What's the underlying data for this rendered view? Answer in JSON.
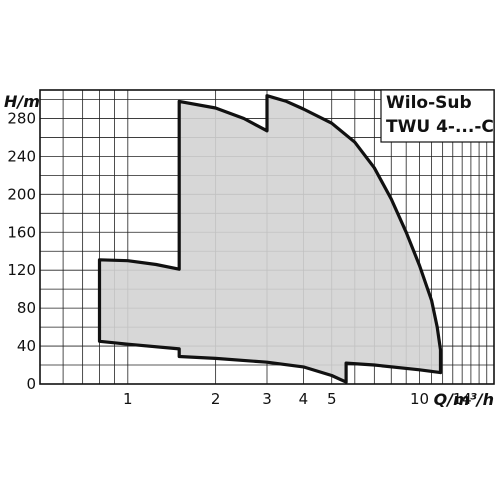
{
  "chart_data": {
    "type": "area",
    "title_lines": [
      "Wilo-Sub",
      "TWU 4-...-C"
    ],
    "xlabel": "Q/m³/h",
    "ylabel": "H/m",
    "x_scale": "log",
    "xlim": [
      0.5,
      18
    ],
    "ylim": [
      0,
      310
    ],
    "x_ticks": [
      {
        "value": 1,
        "label": "1"
      },
      {
        "value": 2,
        "label": "2"
      },
      {
        "value": 3,
        "label": "3"
      },
      {
        "value": 4,
        "label": "4"
      },
      {
        "value": 5,
        "label": "5"
      },
      {
        "value": 10,
        "label": "10"
      },
      {
        "value": 14,
        "label": "14"
      }
    ],
    "y_ticks": [
      {
        "value": 0,
        "label": "0"
      },
      {
        "value": 40,
        "label": "40"
      },
      {
        "value": 80,
        "label": "80"
      },
      {
        "value": 120,
        "label": "120"
      },
      {
        "value": 160,
        "label": "160"
      },
      {
        "value": 200,
        "label": "200"
      },
      {
        "value": 240,
        "label": "240"
      },
      {
        "value": 280,
        "label": "280"
      }
    ],
    "grid": true,
    "fill_color": "#d3d3d3",
    "outline_color": "#111111",
    "envelope": [
      {
        "q": 0.8,
        "h": 131
      },
      {
        "q": 1.0,
        "h": 130
      },
      {
        "q": 1.25,
        "h": 126
      },
      {
        "q": 1.5,
        "h": 121
      },
      {
        "q": 1.5,
        "h": 298
      },
      {
        "q": 2.0,
        "h": 291
      },
      {
        "q": 2.5,
        "h": 280
      },
      {
        "q": 3.0,
        "h": 267
      },
      {
        "q": 3.0,
        "h": 304
      },
      {
        "q": 3.5,
        "h": 298
      },
      {
        "q": 4.0,
        "h": 290
      },
      {
        "q": 5.0,
        "h": 275
      },
      {
        "q": 6.0,
        "h": 255
      },
      {
        "q": 7.0,
        "h": 228
      },
      {
        "q": 8.0,
        "h": 195
      },
      {
        "q": 9.0,
        "h": 160
      },
      {
        "q": 10.0,
        "h": 125
      },
      {
        "q": 11.0,
        "h": 88
      },
      {
        "q": 11.5,
        "h": 60
      },
      {
        "q": 11.8,
        "h": 36
      },
      {
        "q": 11.8,
        "h": 12
      },
      {
        "q": 10.0,
        "h": 15
      },
      {
        "q": 7.0,
        "h": 20
      },
      {
        "q": 5.6,
        "h": 22
      },
      {
        "q": 5.6,
        "h": 2
      },
      {
        "q": 5.0,
        "h": 9
      },
      {
        "q": 4.0,
        "h": 18
      },
      {
        "q": 3.0,
        "h": 23
      },
      {
        "q": 2.0,
        "h": 27
      },
      {
        "q": 1.5,
        "h": 29
      },
      {
        "q": 1.5,
        "h": 37
      },
      {
        "q": 1.0,
        "h": 42
      },
      {
        "q": 0.8,
        "h": 45
      }
    ]
  }
}
